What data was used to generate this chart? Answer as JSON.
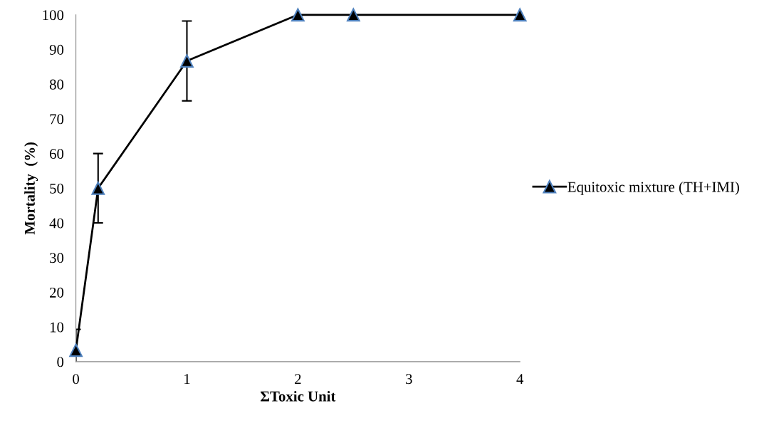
{
  "chart_data": {
    "type": "line",
    "xlabel": "ΣToxic Unit",
    "ylabel": "Mortality  (%)",
    "x": [
      0,
      0.2,
      1,
      2,
      2.5,
      4
    ],
    "series": [
      {
        "name": "Equitoxic mixture (TH+IMI)",
        "color": "#000000",
        "values": [
          3.3,
          50,
          86.7,
          100,
          100,
          100
        ],
        "errors": [
          6,
          10,
          11.5,
          null,
          null,
          null
        ]
      }
    ],
    "xlim": [
      0,
      4
    ],
    "xticks": [
      0,
      1,
      2,
      3,
      4
    ],
    "ylim": [
      0,
      100
    ],
    "yticks": [
      0,
      10,
      20,
      30,
      40,
      50,
      60,
      70,
      80,
      90,
      100
    ],
    "grid": false,
    "legend": "right",
    "marker": "triangle",
    "line_style": "solid"
  }
}
